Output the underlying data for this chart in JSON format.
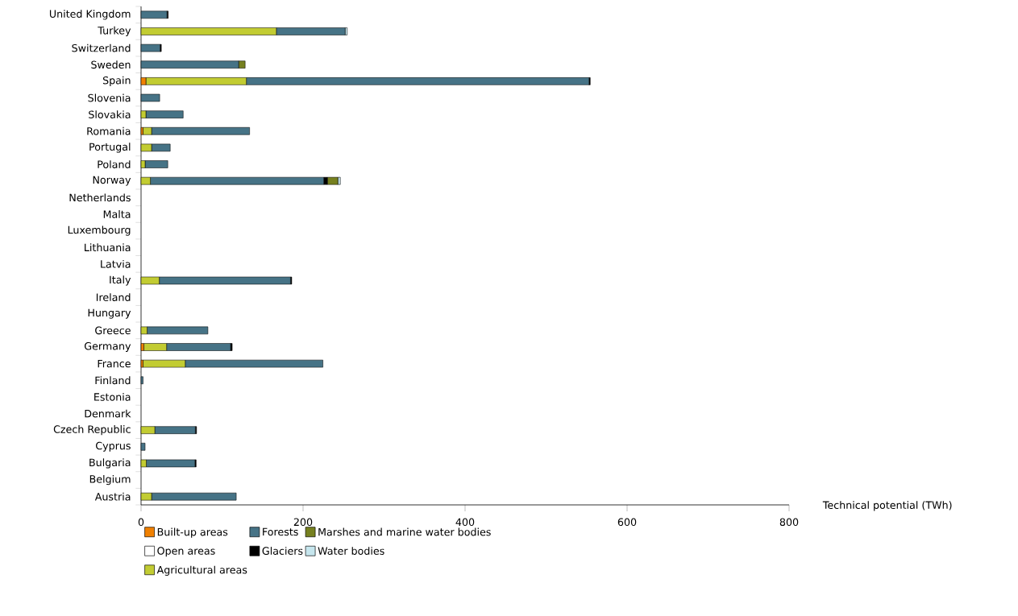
{
  "chart_data": {
    "type": "bar",
    "orientation": "horizontal",
    "stacked": true,
    "xlabel": "Technical potential (TWh)",
    "xlim": [
      0,
      800
    ],
    "xticks": [
      0,
      200,
      400,
      600,
      800
    ],
    "grid": false,
    "legend": "bottom",
    "categories": [
      "United Kingdom",
      "Turkey",
      "Switzerland",
      "Sweden",
      "Spain",
      "Slovenia",
      "Slovakia",
      "Romania",
      "Portugal",
      "Poland",
      "Norway",
      "Netherlands",
      "Malta",
      "Luxembourg",
      "Lithuania",
      "Latvia",
      "Italy",
      "Ireland",
      "Hungary",
      "Greece",
      "Germany",
      "France",
      "Finland",
      "Estonia",
      "Denmark",
      "Czech Republic",
      "Cyprus",
      "Bulgaria",
      "Belgium",
      "Austria"
    ],
    "series": [
      {
        "name": "Built-up areas",
        "color": "#f08000",
        "values": [
          null,
          null,
          null,
          null,
          6,
          null,
          null,
          2.5,
          null,
          null,
          null,
          null,
          null,
          null,
          null,
          null,
          null,
          null,
          null,
          null,
          3.5,
          2.5,
          null,
          null,
          null,
          null,
          null,
          null,
          null,
          null
        ]
      },
      {
        "name": "Open areas",
        "color": "#ffffff",
        "values": [
          null,
          null,
          null,
          null,
          null,
          null,
          null,
          null,
          null,
          null,
          null,
          null,
          null,
          null,
          null,
          null,
          null,
          null,
          null,
          null,
          null,
          null,
          null,
          null,
          null,
          null,
          null,
          null,
          null,
          null
        ]
      },
      {
        "name": "Agricultural areas",
        "color": "#c2cc32",
        "values": [
          null,
          167,
          null,
          null,
          124,
          null,
          6,
          10.5,
          13,
          5,
          11.5,
          null,
          null,
          null,
          null,
          null,
          22.5,
          null,
          null,
          7.5,
          28,
          52,
          null,
          null,
          null,
          17,
          null,
          6.5,
          null,
          13
        ]
      },
      {
        "name": "Forests",
        "color": "#467386",
        "values": [
          32,
          85,
          23.5,
          120.5,
          423,
          23,
          46,
          121,
          23,
          28,
          214,
          null,
          null,
          null,
          null,
          null,
          162,
          null,
          null,
          75,
          79,
          170,
          2.5,
          null,
          null,
          50,
          5,
          60,
          null,
          104.5
        ]
      },
      {
        "name": "Glaciers",
        "color": "#000000",
        "values": [
          1.5,
          null,
          1.5,
          null,
          1.5,
          null,
          null,
          null,
          null,
          null,
          4.5,
          null,
          null,
          null,
          null,
          null,
          1.5,
          null,
          null,
          null,
          2,
          null,
          null,
          null,
          null,
          1.5,
          null,
          1.5,
          null,
          null
        ]
      },
      {
        "name": "Marshes and marine water bodies",
        "color": "#76801f",
        "values": [
          null,
          null,
          null,
          8,
          null,
          null,
          null,
          null,
          null,
          null,
          13,
          null,
          null,
          null,
          null,
          null,
          null,
          null,
          null,
          null,
          null,
          null,
          null,
          null,
          null,
          null,
          null,
          null,
          null,
          null
        ]
      },
      {
        "name": "Water bodies",
        "color": "#c6e6ee",
        "values": [
          null,
          2.5,
          null,
          null,
          null,
          null,
          null,
          null,
          null,
          null,
          3,
          null,
          null,
          null,
          null,
          null,
          null,
          null,
          null,
          null,
          null,
          null,
          null,
          null,
          null,
          null,
          null,
          null,
          null,
          null
        ]
      }
    ]
  }
}
